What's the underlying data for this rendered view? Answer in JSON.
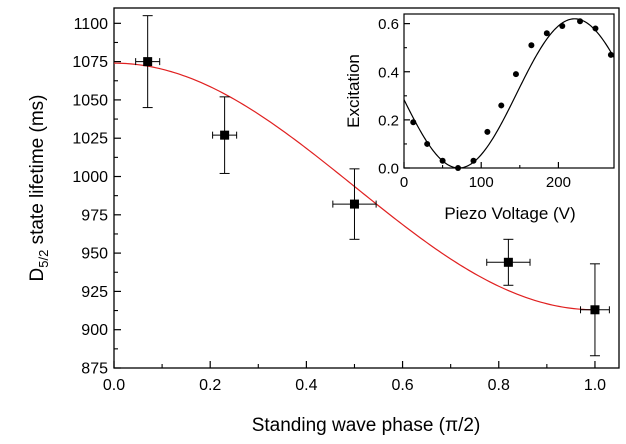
{
  "chart_data": [
    {
      "type": "scatter",
      "title": "",
      "xlabel": "Standing wave phase (π/2)",
      "ylabel_main": "D",
      "ylabel_sub": "5/2",
      "ylabel_rest": " state lifetime (ms)",
      "xlim": [
        0.0,
        1.05
      ],
      "ylim": [
        875,
        1110
      ],
      "xticks": [
        0.0,
        0.2,
        0.4,
        0.6,
        0.8,
        1.0
      ],
      "xtick_labels": [
        "0.0",
        "0.2",
        "0.4",
        "0.6",
        "0.8",
        "1.0"
      ],
      "yticks": [
        875,
        900,
        925,
        950,
        975,
        1000,
        1025,
        1050,
        1075,
        1100
      ],
      "ytick_labels": [
        "875",
        "900",
        "925",
        "950",
        "975",
        "1000",
        "1025",
        "1050",
        "1075",
        "1100"
      ],
      "grid": false,
      "points": [
        {
          "x": 0.07,
          "y": 1075,
          "xerr": 0.025,
          "yerr": 30
        },
        {
          "x": 0.23,
          "y": 1027,
          "xerr": 0.025,
          "yerr": 25
        },
        {
          "x": 0.5,
          "y": 982,
          "xerr": 0.045,
          "yerr": 23
        },
        {
          "x": 0.82,
          "y": 944,
          "xerr": 0.045,
          "yerr": 15
        },
        {
          "x": 1.0,
          "y": 913,
          "xerr": 0.03,
          "yerr": 30
        }
      ],
      "fit": {
        "model": "cos2",
        "a": 913,
        "b": 161,
        "x_start": 0.0,
        "x_end": 1.0,
        "color": "#e02020"
      },
      "marker_color": "#000000"
    },
    {
      "type": "scatter",
      "title": "",
      "xlabel": "Piezo Voltage (V)",
      "ylabel": "Excitation",
      "xlim": [
        0,
        272
      ],
      "ylim": [
        0,
        0.64
      ],
      "xticks": [
        0,
        100,
        200
      ],
      "xtick_labels": [
        "0",
        "100",
        "200"
      ],
      "yticks": [
        0.0,
        0.2,
        0.4,
        0.6
      ],
      "ytick_labels": [
        "0.0",
        "0.2",
        "0.4",
        "0.6"
      ],
      "grid": false,
      "points": [
        {
          "x": 12,
          "y": 0.19
        },
        {
          "x": 30,
          "y": 0.1
        },
        {
          "x": 50,
          "y": 0.03
        },
        {
          "x": 70,
          "y": 0.0
        },
        {
          "x": 90,
          "y": 0.03
        },
        {
          "x": 108,
          "y": 0.15
        },
        {
          "x": 126,
          "y": 0.26
        },
        {
          "x": 145,
          "y": 0.39
        },
        {
          "x": 165,
          "y": 0.51
        },
        {
          "x": 185,
          "y": 0.56
        },
        {
          "x": 205,
          "y": 0.59
        },
        {
          "x": 228,
          "y": 0.61
        },
        {
          "x": 248,
          "y": 0.58
        },
        {
          "x": 268,
          "y": 0.47
        }
      ],
      "fit": {
        "model": "sine",
        "offset": 0.31,
        "amp": 0.31,
        "period": 300,
        "phase_zero": 71,
        "color": "#000000"
      },
      "marker_color": "#000000"
    }
  ]
}
